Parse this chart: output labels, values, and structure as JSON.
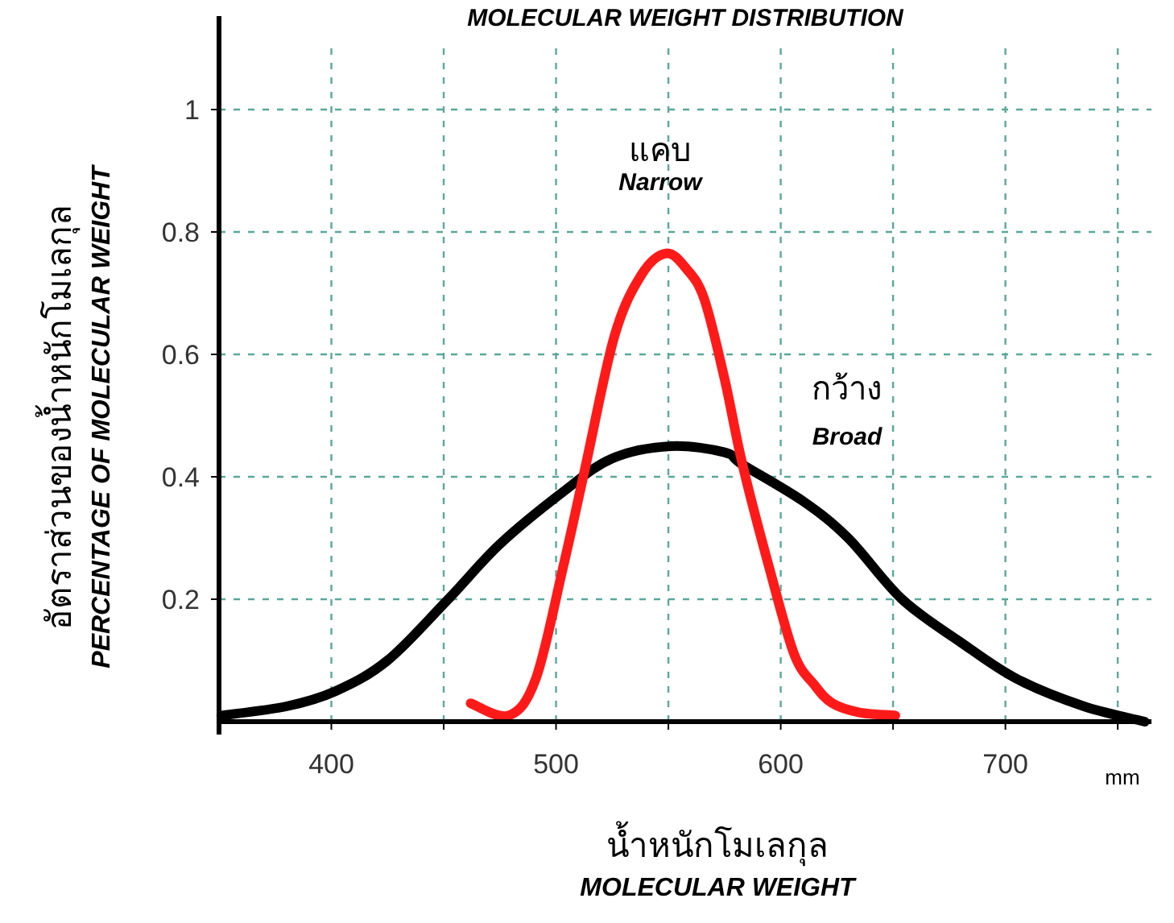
{
  "chart_data": {
    "type": "line",
    "title": "MOLECULAR WEIGHT DISTRIBUTION",
    "xlabel": "น้ำหนักโมเลกุล\nMOLECULAR WEIGHT",
    "ylabel": "อัตราส่วนของน้ำหนักโมเลกุล\nPERCENTAGE OF MOLECULAR WEIGHT",
    "xlim": [
      350,
      765
    ],
    "ylim": [
      0,
      1.1
    ],
    "xticks": [
      400,
      {
        "value": 450,
        "label": null
      },
      500,
      {
        "value": 550,
        "label": null
      },
      600,
      {
        "value": 650,
        "label": null
      },
      700,
      {
        "value": 750,
        "label": null
      }
    ],
    "yticks": [
      0.2,
      0.4,
      0.6,
      0.8,
      1
    ],
    "grid": true,
    "line_style": "solid",
    "series": [
      {
        "color": "#000000",
        "x": [
          351,
          380,
          402,
          425,
          452,
          475,
          503,
          525,
          551,
          575,
          583,
          610,
          630,
          654,
          680,
          705,
          735,
          762
        ],
        "values": [
          0.01,
          0.025,
          0.05,
          0.1,
          0.2,
          0.29,
          0.375,
          0.43,
          0.45,
          0.44,
          0.42,
          0.36,
          0.3,
          0.2,
          0.13,
          0.07,
          0.025,
          0.0
        ]
      },
      {
        "color": "#ff1a1a",
        "x": [
          462,
          479,
          491,
          503,
          513,
          526,
          538,
          549,
          558,
          566,
          575,
          583,
          595,
          606,
          615,
          623,
          635,
          651
        ],
        "values": [
          0.03,
          0.01,
          0.07,
          0.25,
          0.415,
          0.63,
          0.73,
          0.765,
          0.74,
          0.69,
          0.56,
          0.42,
          0.25,
          0.11,
          0.06,
          0.03,
          0.015,
          0.01
        ]
      }
    ],
    "annotations": [
      "แคบ",
      "Narrow",
      "กว้าง",
      "Broad",
      "mm"
    ]
  }
}
